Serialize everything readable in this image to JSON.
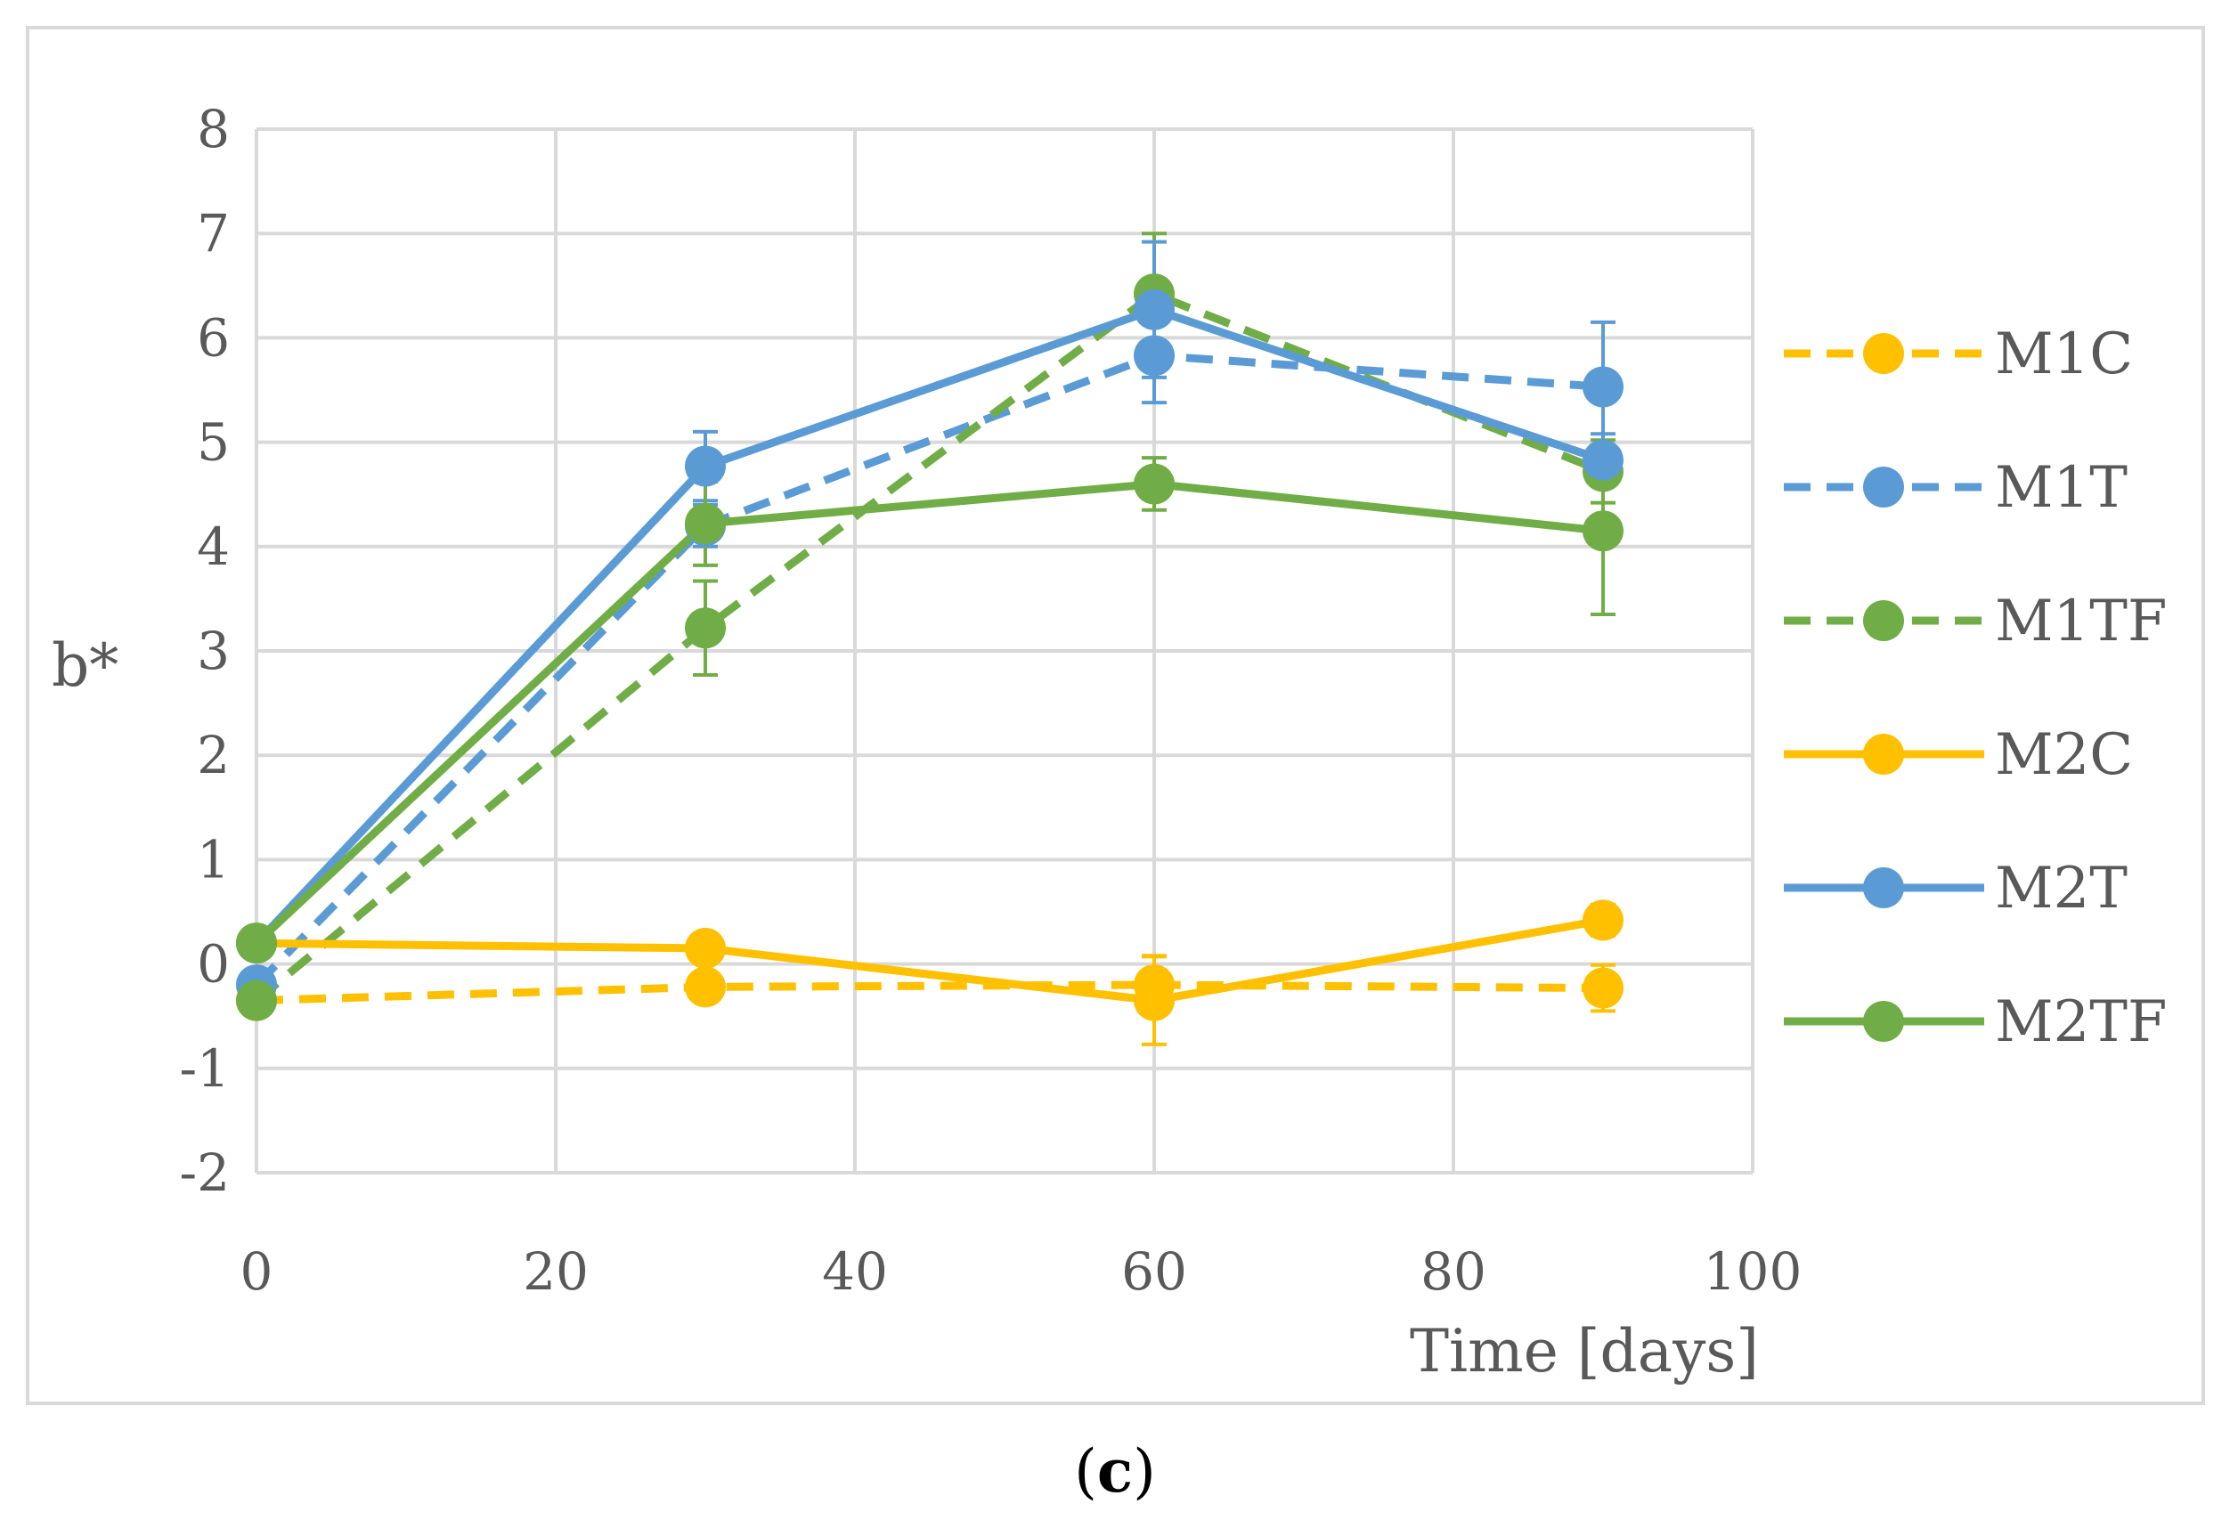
{
  "chart_data": {
    "type": "line",
    "xlabel": "Time [days]",
    "ylabel": "b*",
    "xlim": [
      0,
      100
    ],
    "ylim": [
      -2,
      8
    ],
    "x_ticks": [
      0,
      20,
      40,
      60,
      80,
      100
    ],
    "y_ticks": [
      -2,
      -1,
      0,
      1,
      2,
      3,
      4,
      5,
      6,
      7,
      8
    ],
    "grid": true,
    "legend_position": "right",
    "x": [
      0,
      30,
      60,
      90
    ],
    "series": [
      {
        "name": "M1C",
        "color": "#FFC000",
        "dash": true,
        "values": [
          -0.35,
          -0.22,
          -0.2,
          -0.23
        ],
        "errors": [
          0.05,
          0.1,
          0.28,
          0.22
        ]
      },
      {
        "name": "M1T",
        "color": "#5B9BD5",
        "dash": true,
        "values": [
          -0.2,
          4.2,
          5.83,
          5.53
        ],
        "errors": [
          0.05,
          0.2,
          0.45,
          0.62
        ]
      },
      {
        "name": "M1TF",
        "color": "#70AD47",
        "dash": true,
        "values": [
          -0.35,
          3.22,
          6.42,
          4.72
        ],
        "errors": [
          0.05,
          0.45,
          0.58,
          0.3
        ]
      },
      {
        "name": "M2C",
        "color": "#FFC000",
        "dash": false,
        "values": [
          0.2,
          0.15,
          -0.35,
          0.42
        ],
        "errors": [
          0.05,
          0.12,
          0.42,
          0.15
        ]
      },
      {
        "name": "M2T",
        "color": "#5B9BD5",
        "dash": false,
        "values": [
          0.2,
          4.77,
          6.27,
          4.83
        ],
        "errors": [
          0.05,
          0.33,
          0.65,
          0.25
        ]
      },
      {
        "name": "M2TF",
        "color": "#70AD47",
        "dash": false,
        "values": [
          0.2,
          4.22,
          4.6,
          4.15
        ],
        "errors": [
          0.05,
          0.4,
          0.25,
          0.8
        ]
      }
    ]
  },
  "panel_label": {
    "open": "(",
    "letter": "c",
    "close": ")"
  }
}
